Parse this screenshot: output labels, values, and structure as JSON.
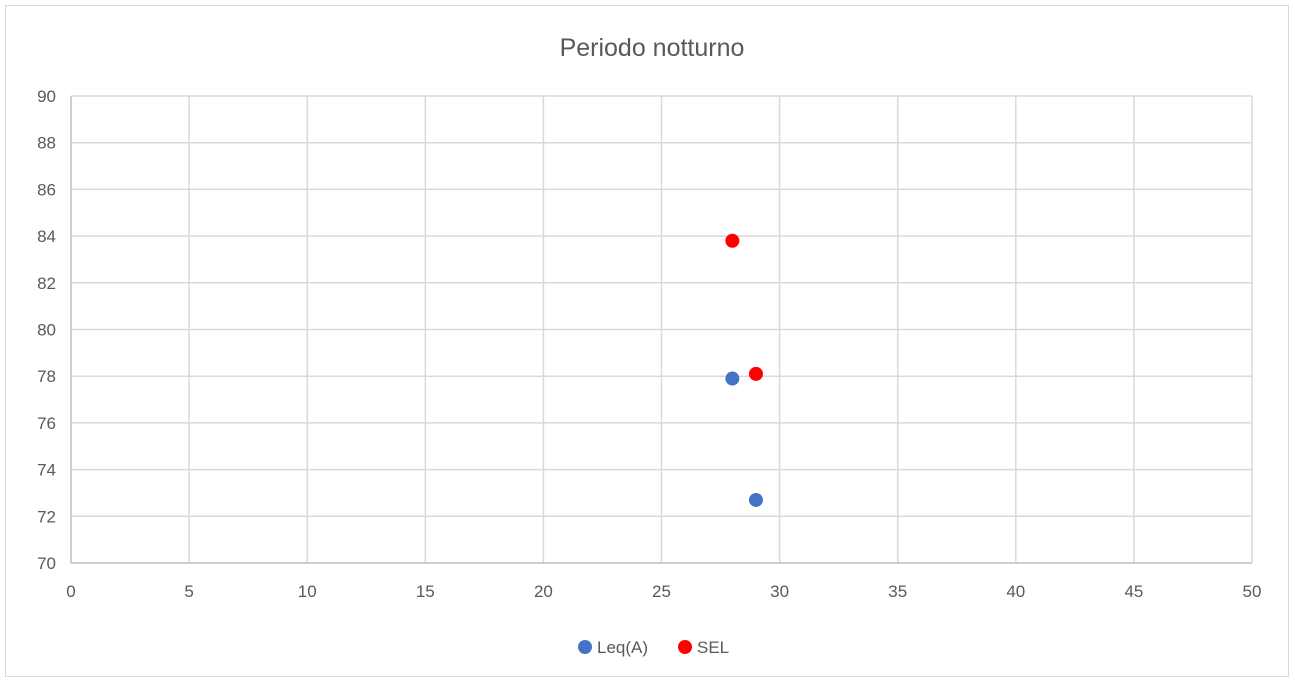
{
  "chart_data": {
    "type": "scatter",
    "title": "Periodo notturno",
    "xlabel": "",
    "ylabel": "",
    "xlim": [
      0,
      50
    ],
    "ylim": [
      70,
      90
    ],
    "x_ticks": [
      "0",
      "5",
      "10",
      "15",
      "20",
      "25",
      "30",
      "35",
      "40",
      "45",
      "50"
    ],
    "y_ticks": [
      "70",
      "72",
      "74",
      "76",
      "78",
      "80",
      "82",
      "84",
      "86",
      "88",
      "90"
    ],
    "grid": true,
    "legend_position": "bottom",
    "series": [
      {
        "name": "Leq(A)",
        "color": "#4472c4",
        "points": [
          {
            "x": 28,
            "y": 77.9
          },
          {
            "x": 29,
            "y": 72.7
          }
        ]
      },
      {
        "name": "SEL",
        "color": "#ff0000",
        "points": [
          {
            "x": 28,
            "y": 83.8
          },
          {
            "x": 29,
            "y": 78.1
          }
        ]
      }
    ]
  }
}
